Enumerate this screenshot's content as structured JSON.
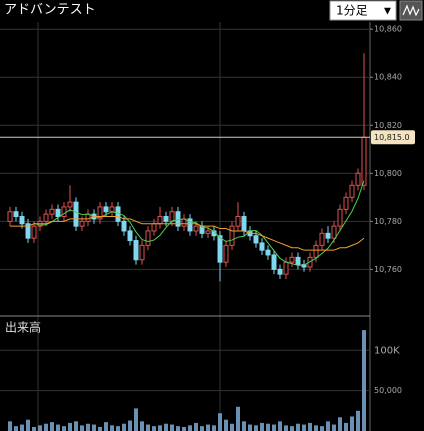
{
  "chart_data": {
    "type": "candlestick",
    "title": "アドバンテスト",
    "interval": "1分足",
    "up_color": "#e05050",
    "down_color": "#80d8f0",
    "open": [
      10780,
      10784,
      10782,
      10779,
      10773,
      10778,
      10780,
      10783,
      10785,
      10782,
      10786,
      10788,
      10778,
      10780,
      10783,
      10781,
      10786,
      10784,
      10786,
      10780,
      10776,
      10772,
      10764,
      10770,
      10776,
      10779,
      10782,
      10780,
      10784,
      10778,
      10781,
      10776,
      10778,
      10775,
      10776,
      10774,
      10763,
      10770,
      10778,
      10782,
      10776,
      10774,
      10771,
      10768,
      10766,
      10760,
      10758,
      10763,
      10765,
      10762,
      10761,
      10765,
      10770,
      10775,
      10773,
      10778,
      10785,
      10790,
      10795,
      10795
    ],
    "high": [
      10786,
      10786,
      10784,
      10781,
      10780,
      10782,
      10785,
      10787,
      10787,
      10788,
      10795,
      10790,
      10782,
      10785,
      10785,
      10788,
      10788,
      10788,
      10788,
      10782,
      10778,
      10774,
      10772,
      10778,
      10781,
      10786,
      10784,
      10786,
      10786,
      10783,
      10783,
      10780,
      10780,
      10778,
      10778,
      10776,
      10772,
      10780,
      10788,
      10784,
      10778,
      10776,
      10773,
      10770,
      10768,
      10762,
      10765,
      10767,
      10767,
      10764,
      10767,
      10772,
      10777,
      10778,
      10780,
      10787,
      10792,
      10797,
      10802,
      10850
    ],
    "low": [
      10778,
      10780,
      10777,
      10771,
      10771,
      10776,
      10778,
      10781,
      10780,
      10780,
      10784,
      10776,
      10776,
      10778,
      10779,
      10779,
      10782,
      10782,
      10778,
      10774,
      10770,
      10762,
      10762,
      10768,
      10774,
      10777,
      10778,
      10778,
      10776,
      10776,
      10774,
      10774,
      10773,
      10773,
      10772,
      10755,
      10761,
      10768,
      10776,
      10774,
      10772,
      10769,
      10766,
      10764,
      10758,
      10756,
      10756,
      10761,
      10760,
      10759,
      10759,
      10763,
      10768,
      10771,
      10771,
      10776,
      10783,
      10788,
      10793,
      10793
    ],
    "close": [
      10784,
      10782,
      10779,
      10773,
      10778,
      10780,
      10783,
      10785,
      10782,
      10786,
      10788,
      10778,
      10780,
      10783,
      10781,
      10786,
      10784,
      10786,
      10780,
      10776,
      10772,
      10764,
      10770,
      10776,
      10779,
      10782,
      10780,
      10784,
      10778,
      10781,
      10776,
      10778,
      10775,
      10776,
      10774,
      10763,
      10770,
      10778,
      10782,
      10776,
      10774,
      10771,
      10768,
      10766,
      10760,
      10758,
      10763,
      10765,
      10762,
      10761,
      10765,
      10770,
      10775,
      10773,
      10778,
      10785,
      10790,
      10795,
      10800,
      10815
    ],
    "moving_averages": [
      {
        "color": "#4cd04c",
        "values": [
          null,
          null,
          null,
          null,
          10779.2,
          10778.4,
          10778.6,
          10779.8,
          10781.6,
          10783.2,
          10784.8,
          10783.8,
          10782.8,
          10783,
          10782,
          10781.6,
          10782.8,
          10784,
          10783.4,
          10782.4,
          10779.6,
          10775.6,
          10772.4,
          10771.6,
          10772.2,
          10774.2,
          10777.4,
          10780.2,
          10780.6,
          10781,
          10779.8,
          10779.4,
          10777.6,
          10777.2,
          10775.8,
          10773.2,
          10771.6,
          10772.2,
          10773.4,
          10773.8,
          10776,
          10776.2,
          10774.2,
          10771,
          10767.8,
          10764.6,
          10763,
          10762.4,
          10761.6,
          10761.8,
          10763.2,
          10764.6,
          10766.6,
          10768.8,
          10772.2,
          10776.2,
          10780.2,
          10784.2,
          10789.6,
          10797
        ]
      },
      {
        "color": "#f0a030",
        "values": [
          10778,
          10778,
          10778,
          10778,
          10779,
          10779,
          10779,
          10780,
          10780,
          10780,
          10781,
          10781,
          10781,
          10781,
          10782,
          10782,
          10782,
          10782,
          10782,
          10781,
          10781,
          10780,
          10779,
          10779,
          10779,
          10779,
          10779,
          10779,
          10779,
          10779,
          10779,
          10779,
          10778,
          10778,
          10778,
          10777,
          10777,
          10776,
          10776,
          10776,
          10775,
          10775,
          10774,
          10773,
          10772,
          10771,
          10770,
          10769,
          10769,
          10768,
          10768,
          10768,
          10768,
          10768,
          10768,
          10769,
          10769,
          10770,
          10771,
          10773
        ]
      }
    ],
    "ylim": [
      10741,
      10863
    ],
    "yticks": [
      {
        "value": 10760,
        "label": "10,760"
      },
      {
        "value": 10780,
        "label": "10,780"
      },
      {
        "value": 10800,
        "label": "10,800"
      },
      {
        "value": 10820,
        "label": "10,820"
      },
      {
        "value": 10840,
        "label": "10,840"
      },
      {
        "value": 10860,
        "label": "10,860"
      }
    ],
    "grid": true,
    "current_price": {
      "value": 10815,
      "label": "10,815.0"
    },
    "volume": {
      "label": "出来高",
      "color": "#6a90b4",
      "values": [
        12000,
        6000,
        8000,
        14000,
        5000,
        7000,
        9000,
        11000,
        8000,
        6000,
        10000,
        12000,
        7000,
        9000,
        8000,
        5000,
        11000,
        7000,
        6000,
        9000,
        13000,
        28000,
        12000,
        8000,
        6000,
        7000,
        9000,
        8000,
        6000,
        5000,
        7000,
        10000,
        6000,
        8000,
        7000,
        22000,
        14000,
        9000,
        30000,
        12000,
        8000,
        7000,
        10000,
        9000,
        8000,
        12000,
        7000,
        6000,
        9000,
        8000,
        10000,
        7000,
        6000,
        12000,
        8000,
        17000,
        10000,
        18000,
        25000,
        125000
      ],
      "ylim": [
        0,
        140000
      ],
      "yticks": [
        {
          "value": 50000,
          "label": "50,000"
        },
        {
          "value": 100000,
          "label": "100K"
        }
      ]
    }
  }
}
